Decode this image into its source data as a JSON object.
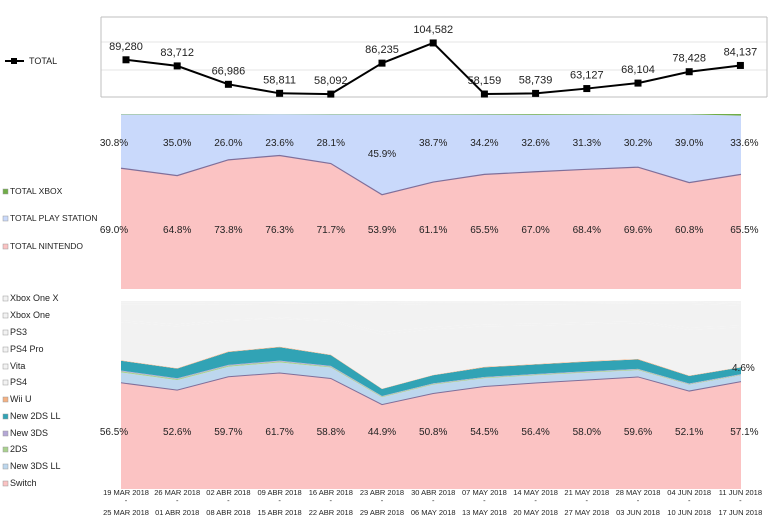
{
  "chart_data": [
    {
      "type": "line",
      "legend": "TOTAL",
      "categories": [
        "19 MAR 2018 - 25 MAR 2018",
        "26 MAR 2018 - 01 ABR 2018",
        "02 ABR 2018 - 08 ABR 2018",
        "09 ABR 2018 - 15 ABR 2018",
        "16 ABR 2018 - 22 ABR 2018",
        "23 ABR 2018 - 29 ABR 2018",
        "30 ABR 2018 - 06 MAY 2018",
        "07 MAY 2018 - 13 MAY 2018",
        "14 MAY 2018 - 20 MAY 2018",
        "21 MAY 2018 - 27 MAY 2018",
        "28 MAY 2018 - 03 JUN 2018",
        "04 JUN 2018 - 10 JUN 2018",
        "11 JUN 2018 - 17 JUN 2018"
      ],
      "values": [
        89280,
        83712,
        66986,
        58811,
        58092,
        86235,
        104582,
        58159,
        58739,
        63127,
        68104,
        78428,
        84137
      ],
      "labels": [
        "89,280",
        "83,712",
        "66,986",
        "58,811",
        "58,092",
        "86,235",
        "104,582",
        "58,159",
        "58,739",
        "63,127",
        "68,104",
        "78,428",
        "84,137"
      ],
      "grid": true
    },
    {
      "type": "area",
      "stacked": "percent",
      "series": [
        {
          "name": "TOTAL NINTENDO",
          "color": "#fbc3c3",
          "values": [
            69.0,
            64.8,
            73.8,
            76.3,
            71.7,
            53.9,
            61.1,
            65.5,
            67.0,
            68.4,
            69.6,
            60.8,
            65.5
          ],
          "labels": [
            "69.0%",
            "64.8%",
            "73.8%",
            "76.3%",
            "71.7%",
            "53.9%",
            "61.1%",
            "65.5%",
            "67.0%",
            "68.4%",
            "69.6%",
            "60.8%",
            "65.5%"
          ]
        },
        {
          "name": "TOTAL PLAY STATION",
          "color": "#c9d9fb",
          "values": [
            30.8,
            35.0,
            26.0,
            23.6,
            28.1,
            45.9,
            38.7,
            34.2,
            32.6,
            31.3,
            30.2,
            39.0,
            33.6
          ],
          "labels": [
            "30.8%",
            "35.0%",
            "26.0%",
            "23.6%",
            "28.1%",
            "45.9%",
            "38.7%",
            "34.2%",
            "32.6%",
            "31.3%",
            "30.2%",
            "39.0%",
            "33.6%"
          ]
        },
        {
          "name": "TOTAL XBOX",
          "color": "#70ad47",
          "values": [
            0.2,
            0.2,
            0.2,
            0.1,
            0.2,
            0.2,
            0.2,
            0.3,
            0.4,
            0.3,
            0.2,
            0.2,
            0.9
          ]
        }
      ],
      "ylim": [
        0,
        100
      ]
    },
    {
      "type": "area",
      "stacked": "percent",
      "series": [
        {
          "name": "Switch",
          "color": "#fbc3c3",
          "values": [
            56.5,
            52.6,
            59.7,
            61.7,
            58.8,
            44.9,
            50.8,
            54.5,
            56.4,
            58.0,
            59.6,
            52.1,
            57.1
          ],
          "labels": [
            "56.5%",
            "52.6%",
            "59.7%",
            "61.7%",
            "58.8%",
            "44.9%",
            "50.8%",
            "54.5%",
            "56.4%",
            "58.0%",
            "59.6%",
            "52.1%",
            "57.1%"
          ]
        },
        {
          "name": "New 3DS LL",
          "color": "#bdd7ee",
          "values": [
            5.5,
            5.3,
            5.3,
            5.6,
            5.8,
            3.9,
            4.7,
            4.4,
            4.1,
            3.9,
            3.6,
            3.4,
            3.4
          ]
        },
        {
          "name": "2DS",
          "color": "#a9d18e",
          "values": [
            0.6,
            0.6,
            0.6,
            0.6,
            0.5,
            0.4,
            0.4,
            0.4,
            0.4,
            0.4,
            0.4,
            0.3,
            0.3
          ]
        },
        {
          "name": "New 3DS",
          "color": "#b4a7d6",
          "values": [
            0.4,
            0.4,
            0.4,
            0.4,
            0.4,
            0.3,
            0.3,
            0.3,
            0.3,
            0.3,
            0.3,
            0.3,
            0.3
          ]
        },
        {
          "name": "New 2DS LL",
          "color": "#31a3b5",
          "values": [
            5.2,
            5.1,
            6.9,
            7.1,
            5.7,
            3.7,
            4.3,
            5.1,
            5.0,
            5.1,
            5.0,
            4.0,
            3.6
          ]
        },
        {
          "name": "Wii U",
          "color": "#f4b183",
          "values": [
            0.3,
            0.3,
            0.3,
            0.3,
            0.3,
            0.2,
            0.2,
            0.3,
            0.3,
            0.3,
            0.3,
            0.3,
            0.2
          ]
        },
        {
          "name": "PS4",
          "color": "#f2f2f2",
          "values": [
            20.2,
            22.2,
            16.1,
            14.9,
            17.5,
            28.8,
            24.2,
            21.5,
            20.4,
            19.6,
            19.0,
            24.3,
            21.1
          ]
        },
        {
          "name": "Vita",
          "color": "#f2f2f2",
          "values": [
            1.0,
            1.1,
            0.8,
            0.7,
            0.9,
            1.4,
            1.2,
            1.1,
            1.0,
            1.0,
            0.9,
            1.2,
            1.0
          ]
        },
        {
          "name": "PS4 Pro",
          "color": "#f2f2f2",
          "values": [
            8.6,
            10.7,
            8.1,
            7.2,
            8.7,
            14.5,
            12.3,
            10.8,
            10.3,
            9.8,
            9.5,
            12.5,
            10.6
          ]
        },
        {
          "name": "PS3",
          "color": "#f2f2f2",
          "values": [
            1.0,
            1.0,
            1.0,
            0.8,
            1.0,
            1.2,
            1.0,
            0.9,
            0.9,
            0.9,
            0.8,
            1.0,
            0.9
          ]
        },
        {
          "name": "Xbox One",
          "color": "#f2f2f2",
          "values": [
            0.2,
            0.2,
            0.2,
            0.1,
            0.2,
            0.2,
            0.2,
            0.3,
            0.3,
            0.3,
            0.2,
            0.2,
            0.8
          ]
        },
        {
          "name": "Xbox One X",
          "color": "#f2f2f2",
          "values": [
            0.5,
            0.5,
            0.6,
            0.6,
            0.2,
            0.5,
            0.4,
            0.4,
            0.6,
            0.4,
            0.4,
            0.4,
            0.7
          ]
        }
      ],
      "extra_labels": [
        {
          "category_index": 12,
          "text": "4.6%"
        }
      ],
      "ylim": [
        0,
        100
      ]
    }
  ]
}
